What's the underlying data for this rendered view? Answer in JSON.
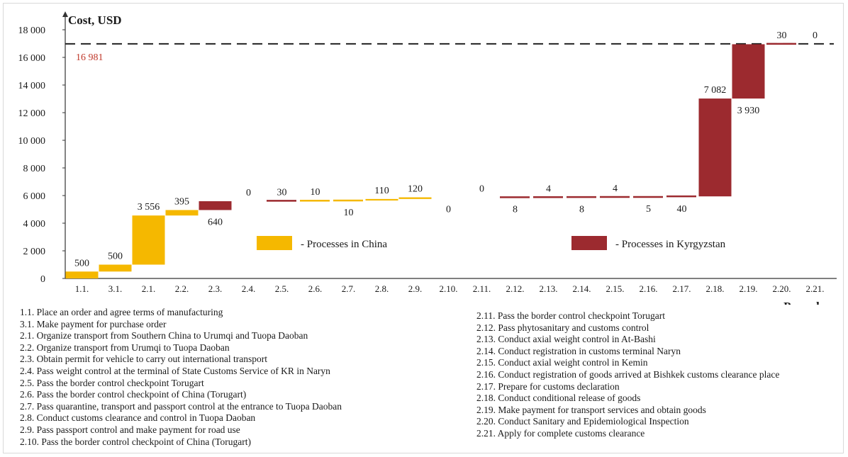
{
  "chart_data": {
    "type": "waterfall",
    "ylabel": "Cost, USD",
    "xlabel": "Procedure",
    "ylim": [
      0,
      18000
    ],
    "yticks": [
      0,
      2000,
      4000,
      6000,
      8000,
      10000,
      12000,
      14000,
      16000,
      18000
    ],
    "ytick_labels": [
      "0",
      "2 000",
      "4 000",
      "6 000",
      "8 000",
      "10 000",
      "12 000",
      "14 000",
      "16 000",
      "18 000"
    ],
    "total_line": {
      "value": 16981,
      "label": "16 981",
      "color": "#c0392b"
    },
    "categories": [
      "1.1.",
      "3.1.",
      "2.1.",
      "2.2.",
      "2.3.",
      "2.4.",
      "2.5.",
      "2.6.",
      "2.7.",
      "2.8.",
      "2.9.",
      "2.10.",
      "2.11.",
      "2.12.",
      "2.13.",
      "2.14.",
      "2.15.",
      "2.16.",
      "2.17.",
      "2.18.",
      "2.19.",
      "2.20.",
      "2.21."
    ],
    "steps": [
      {
        "code": "1.1.",
        "value": 500,
        "label": "500",
        "group": "china",
        "label_pos": "above"
      },
      {
        "code": "3.1.",
        "value": 500,
        "label": "500",
        "group": "china",
        "label_pos": "above"
      },
      {
        "code": "2.1.",
        "value": 3556,
        "label": "3 556",
        "group": "china",
        "label_pos": "above"
      },
      {
        "code": "2.2.",
        "value": 395,
        "label": "395",
        "group": "china",
        "label_pos": "above"
      },
      {
        "code": "2.3.",
        "value": 640,
        "label": "640",
        "group": "kyrgyzstan",
        "label_pos": "below"
      },
      {
        "code": "2.4.",
        "value": 0,
        "label": "0",
        "group": "kyrgyzstan",
        "label_pos": "above"
      },
      {
        "code": "2.5.",
        "value": 30,
        "label": "30",
        "group": "kyrgyzstan",
        "label_pos": "above"
      },
      {
        "code": "2.6.",
        "value": 10,
        "label": "10",
        "group": "china",
        "label_pos": "above"
      },
      {
        "code": "2.7.",
        "value": 10,
        "label": "10",
        "group": "china",
        "label_pos": "below"
      },
      {
        "code": "2.8.",
        "value": 110,
        "label": "110",
        "group": "china",
        "label_pos": "above"
      },
      {
        "code": "2.9.",
        "value": 120,
        "label": "120",
        "group": "china",
        "label_pos": "above"
      },
      {
        "code": "2.10.",
        "value": 0,
        "label": "0",
        "group": "china",
        "label_pos": "below"
      },
      {
        "code": "2.11.",
        "value": 0,
        "label": "0",
        "group": "kyrgyzstan",
        "label_pos": "above"
      },
      {
        "code": "2.12.",
        "value": 8,
        "label": "8",
        "group": "kyrgyzstan",
        "label_pos": "below"
      },
      {
        "code": "2.13.",
        "value": 4,
        "label": "4",
        "group": "kyrgyzstan",
        "label_pos": "above"
      },
      {
        "code": "2.14.",
        "value": 8,
        "label": "8",
        "group": "kyrgyzstan",
        "label_pos": "below"
      },
      {
        "code": "2.15.",
        "value": 4,
        "label": "4",
        "group": "kyrgyzstan",
        "label_pos": "above"
      },
      {
        "code": "2.16.",
        "value": 5,
        "label": "5",
        "group": "kyrgyzstan",
        "label_pos": "below"
      },
      {
        "code": "2.17.",
        "value": 40,
        "label": "40",
        "group": "kyrgyzstan",
        "label_pos": "below"
      },
      {
        "code": "2.18.",
        "value": 7082,
        "label": "7 082",
        "group": "kyrgyzstan",
        "label_pos": "above"
      },
      {
        "code": "2.19.",
        "value": 3930,
        "label": "3 930",
        "group": "kyrgyzstan",
        "label_pos": "below"
      },
      {
        "code": "2.20.",
        "value": 30,
        "label": "30",
        "group": "kyrgyzstan",
        "label_pos": "above"
      },
      {
        "code": "2.21.",
        "value": 0,
        "label": "0",
        "group": "kyrgyzstan",
        "label_pos": "above"
      }
    ],
    "legend": [
      {
        "key": "china",
        "label": "- Processes  in  China",
        "color": "#f5b800"
      },
      {
        "key": "kyrgyzstan",
        "label": "- Processes  in  Kyrgyzstan",
        "color": "#9c2a2f"
      }
    ],
    "grid": false
  },
  "notes": {
    "left": [
      "1.1. Place an order and agree terms of manufacturing",
      "3.1. Make payment for purchase order",
      "2.1. Organize transport from Southern China to Urumqi and Tuopa Daoban",
      "2.2. Organize transport from Urumqi to Tuopa Daoban",
      "2.3. Obtain permit for vehicle to carry out international transport",
      "2.4.  Pass  weight control at the terminal of State Customs Service of KR in Naryn",
      "2.5. Pass the border control checkpoint Torugart",
      "2.6. Pass the border control checkpoint of China (Torugart)",
      "2.7. Pass quarantine, transport and passport control at the entrance to Tuopa Daoban",
      "2.8. Conduct customs clearance and control in Tuopa Daoban",
      "2.9. Pass passport control and make payment for road use",
      "2.10.  Pass the border control checkpoint of China (Torugart)"
    ],
    "right": [
      "2.11. Pass the border control checkpoint Torugart",
      "2.12. Pass phytosanitary and customs control",
      "2.13. Conduct axial weight control in At-Bashi",
      "2.14. Conduct registration in customs terminal Naryn",
      "2.15. Conduct axial weight control in Kemin",
      "2.16. Conduct registration of goods arrived at Bishkek customs clearance place",
      "2.17. Prepare for customs declaration",
      "2.18. Conduct conditional release of goods",
      "2.19. Make payment for transport services and obtain goods",
      "2.20. Conduct Sanitary and Epidemiological Inspection",
      "2.21. Apply for complete customs clearance"
    ]
  }
}
